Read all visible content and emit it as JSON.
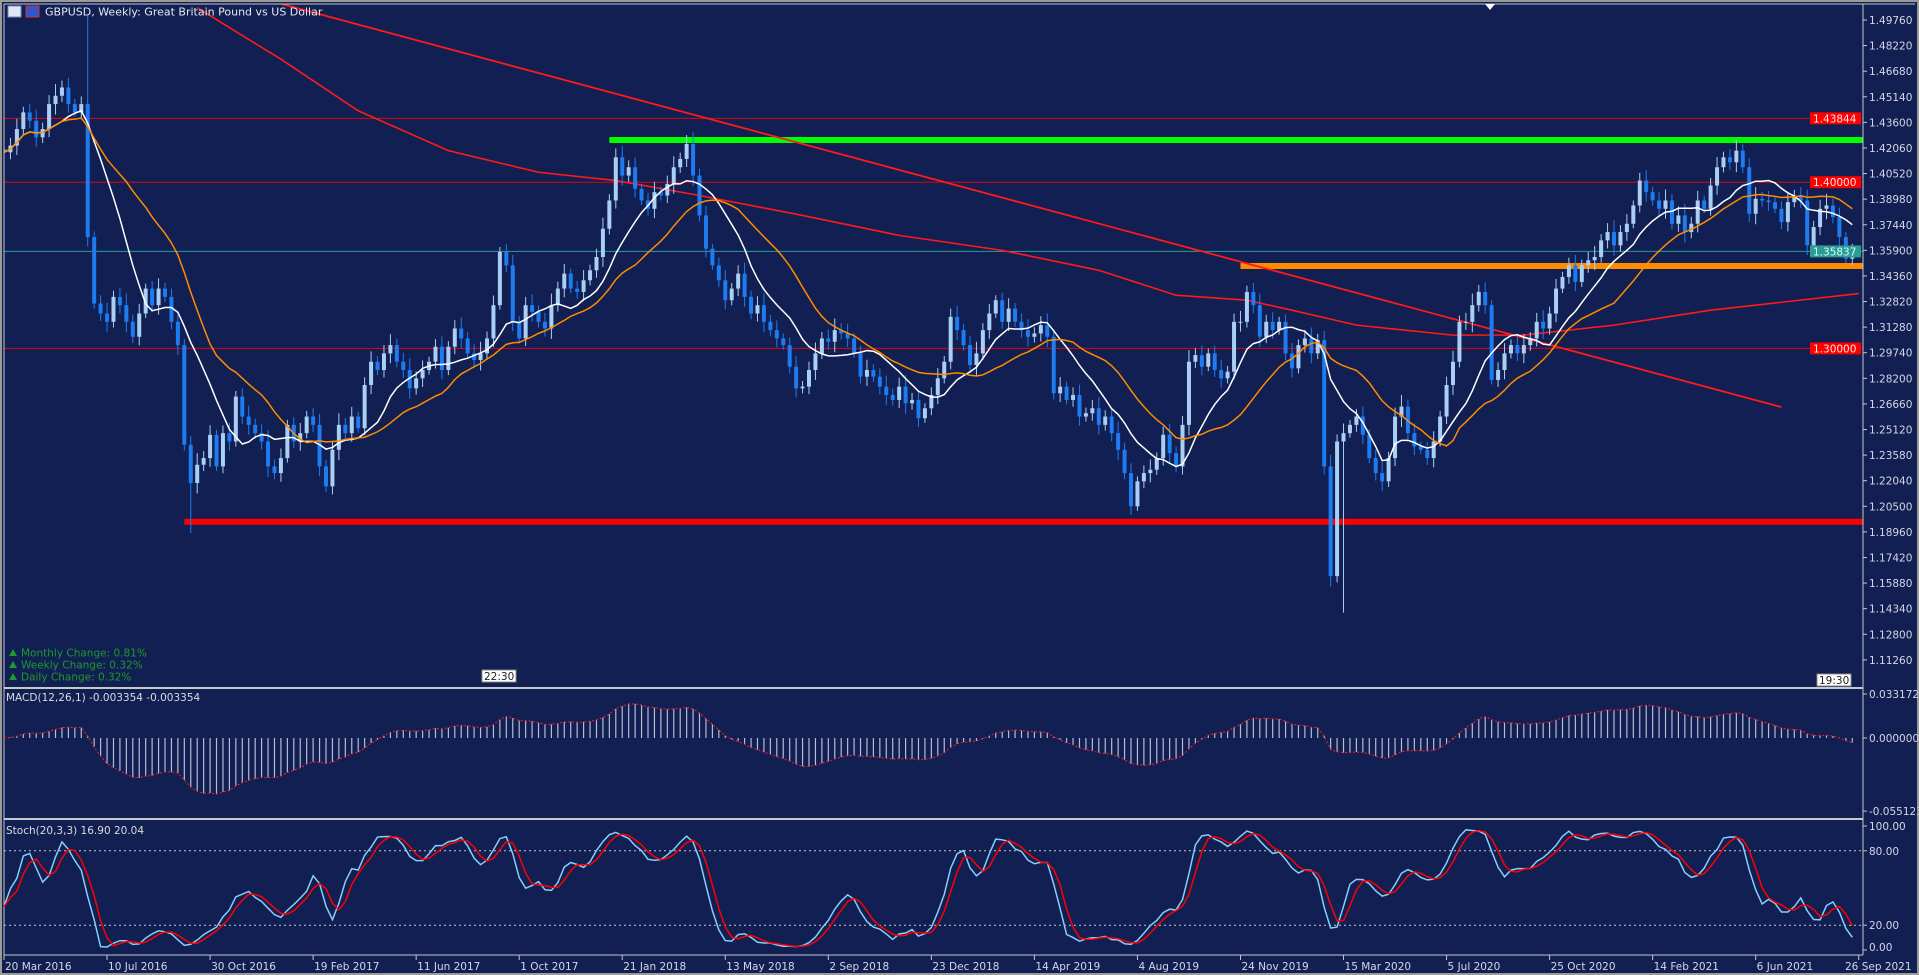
{
  "window": {
    "symbol_title": "GBPUSD, Weekly:  Great Britain Pound vs US Dollar",
    "icons": [
      "chart-window-icon",
      "flag-icon"
    ]
  },
  "info_panel": [
    {
      "icon": "triangle-up-icon",
      "text": "Monthly Change: 0.81%"
    },
    {
      "icon": "triangle-up-icon",
      "text": "Weekly Change: 0.32%"
    },
    {
      "icon": "triangle-up-icon",
      "text": "Daily Change: 0.32%"
    }
  ],
  "time_markers": [
    "22:30",
    "19:30"
  ],
  "colors": {
    "background": "#111f52",
    "bull_candle": "#a9cff5",
    "bear_candle": "#1f7bf0",
    "ma_fast": "#ffffff",
    "ma_slow": "#ff8c00",
    "ma_long": "#ff1a1a",
    "stoch_main": "#87cefa",
    "stoch_signal": "#ff0000",
    "macd_hist": "#b8bcd0",
    "macd_signal": "#ff2020",
    "info_text": "#1f9a2a"
  },
  "chart_data": {
    "type": "candlestick",
    "symbol": "GBPUSD",
    "timeframe": "Weekly",
    "first_bar_date": "20 Mar 2016",
    "weekly_close": [
      1.418,
      1.422,
      1.432,
      1.442,
      1.437,
      1.427,
      1.432,
      1.447,
      1.452,
      1.457,
      1.447,
      1.442,
      1.447,
      1.367,
      1.327,
      1.321,
      1.316,
      1.331,
      1.326,
      1.316,
      1.307,
      1.321,
      1.336,
      1.326,
      1.336,
      1.331,
      1.316,
      1.302,
      1.242,
      1.219,
      1.23,
      1.234,
      1.248,
      1.229,
      1.249,
      1.244,
      1.271,
      1.259,
      1.254,
      1.249,
      1.244,
      1.229,
      1.225,
      1.234,
      1.254,
      1.244,
      1.249,
      1.259,
      1.254,
      1.229,
      1.217,
      1.239,
      1.254,
      1.249,
      1.259,
      1.252,
      1.278,
      1.292,
      1.287,
      1.297,
      1.302,
      1.292,
      1.287,
      1.276,
      1.282,
      1.287,
      1.292,
      1.301,
      1.287,
      1.301,
      1.312,
      1.306,
      1.297,
      1.293,
      1.297,
      1.306,
      1.326,
      1.358,
      1.35,
      1.316,
      1.306,
      1.326,
      1.322,
      1.316,
      1.312,
      1.326,
      1.336,
      1.345,
      1.336,
      1.334,
      1.341,
      1.347,
      1.355,
      1.372,
      1.389,
      1.415,
      1.404,
      1.409,
      1.396,
      1.389,
      1.384,
      1.394,
      1.392,
      1.399,
      1.409,
      1.414,
      1.423,
      1.404,
      1.38,
      1.36,
      1.35,
      1.341,
      1.329,
      1.336,
      1.345,
      1.331,
      1.321,
      1.326,
      1.316,
      1.311,
      1.306,
      1.302,
      1.289,
      1.276,
      1.277,
      1.287,
      1.297,
      1.306,
      1.304,
      1.311,
      1.309,
      1.306,
      1.297,
      1.283,
      1.287,
      1.283,
      1.277,
      1.272,
      1.269,
      1.277,
      1.267,
      1.269,
      1.258,
      1.264,
      1.272,
      1.282,
      1.292,
      1.319,
      1.311,
      1.302,
      1.29,
      1.297,
      1.311,
      1.321,
      1.329,
      1.316,
      1.324,
      1.316,
      1.311,
      1.307,
      1.309,
      1.314,
      1.307,
      1.273,
      1.277,
      1.269,
      1.272,
      1.259,
      1.261,
      1.264,
      1.254,
      1.259,
      1.249,
      1.239,
      1.225,
      1.205,
      1.22,
      1.225,
      1.227,
      1.234,
      1.248,
      1.237,
      1.229,
      1.254,
      1.292,
      1.296,
      1.289,
      1.297,
      1.287,
      1.282,
      1.286,
      1.316,
      1.316,
      1.334,
      1.326,
      1.307,
      1.316,
      1.311,
      1.316,
      1.297,
      1.288,
      1.302,
      1.306,
      1.297,
      1.305,
      1.229,
      1.163,
      1.244,
      1.249,
      1.254,
      1.259,
      1.248,
      1.234,
      1.225,
      1.22,
      1.234,
      1.259,
      1.265,
      1.249,
      1.241,
      1.239,
      1.234,
      1.244,
      1.259,
      1.278,
      1.292,
      1.316,
      1.316,
      1.326,
      1.334,
      1.326,
      1.281,
      1.287,
      1.297,
      1.302,
      1.297,
      1.302,
      1.306,
      1.316,
      1.312,
      1.321,
      1.336,
      1.343,
      1.35,
      1.34,
      1.35,
      1.353,
      1.355,
      1.365,
      1.37,
      1.362,
      1.37,
      1.375,
      1.386,
      1.401,
      1.394,
      1.389,
      1.384,
      1.389,
      1.375,
      1.38,
      1.37,
      1.375,
      1.389,
      1.384,
      1.398,
      1.409,
      1.415,
      1.412,
      1.419,
      1.409,
      1.381,
      1.39,
      1.389,
      1.388,
      1.384,
      1.376,
      1.388,
      1.392,
      1.389,
      1.362,
      1.373,
      1.384,
      1.386,
      1.379,
      1.367,
      1.354,
      1.3584
    ],
    "wick_extremes": [
      {
        "date": "19 Jun 2016",
        "high": 1.501
      },
      {
        "date": "9 Oct 2016",
        "low": 1.189
      },
      {
        "date": "15 Mar 2020",
        "low": 1.141
      }
    ],
    "moving_averages": [
      {
        "color_key": "ma_fast",
        "period": 10
      },
      {
        "color_key": "ma_slow",
        "period": 20
      }
    ],
    "long_ma_path": [
      [
        "16 Oct 2016",
        1.505
      ],
      [
        "15 Jan 2017",
        1.474
      ],
      [
        "9 Apr 2017",
        1.443
      ],
      [
        "16 Jul 2017",
        1.419
      ],
      [
        "22 Oct 2017",
        1.406
      ],
      [
        "14 Jan 2018",
        1.401
      ],
      [
        "15 Apr 2018",
        1.392
      ],
      [
        "5 Aug 2018",
        1.38
      ],
      [
        "18 Nov 2018",
        1.368
      ],
      [
        "10 Mar 2019",
        1.359
      ],
      [
        "23 Jun 2019",
        1.347
      ],
      [
        "15 Sep 2019",
        1.332
      ],
      [
        "1 Dec 2019",
        1.329
      ],
      [
        "19 Jan 2020",
        1.323
      ],
      [
        "29 Mar 2020",
        1.314
      ],
      [
        "12 Jul 2020",
        1.308
      ],
      [
        "27 Sep 2020",
        1.308
      ],
      [
        "3 Jan 2021",
        1.314
      ],
      [
        "18 Apr 2021",
        1.323
      ],
      [
        "26 Sep 2021",
        1.333
      ]
    ],
    "trendline": {
      "start": [
        "8 Jan 2017",
        1.5084
      ],
      "end": [
        "4 Jul 2021",
        1.2647
      ],
      "color": "#ff1a1a"
    },
    "horizontal_levels": [
      {
        "price": 1.43844,
        "label": "1.43844",
        "color": "#ff0000",
        "style": "thin",
        "from": "all"
      },
      {
        "price": 1.4254,
        "color": "#00ff00",
        "style": "thick",
        "from": "7 Jan 2018"
      },
      {
        "price": 1.4,
        "label": "1.40000",
        "color": "#ff0000",
        "style": "thin",
        "from": "all"
      },
      {
        "price": 1.35837,
        "label": "1.35837",
        "color": "#2a9d96",
        "style": "bid",
        "from": "all"
      },
      {
        "price": 1.3496,
        "color": "#ff8c00",
        "style": "thick",
        "from": "24 Nov 2019"
      },
      {
        "price": 1.3,
        "label": "1.30000",
        "color": "#ff0000",
        "style": "thin",
        "from": "all"
      },
      {
        "price": 1.1957,
        "color": "#ff0000",
        "style": "thick",
        "from": "2 Oct 2016"
      }
    ],
    "price_axis": {
      "ticks": [
        "1.49760",
        "1.48220",
        "1.46680",
        "1.45140",
        "1.43600",
        "1.42060",
        "1.40520",
        "1.38980",
        "1.37440",
        "1.35900",
        "1.34360",
        "1.32820",
        "1.31280",
        "1.29740",
        "1.28200",
        "1.26660",
        "1.25120",
        "1.23580",
        "1.22040",
        "1.20500",
        "1.18960",
        "1.17420",
        "1.15880",
        "1.14340",
        "1.12800",
        "1.11260"
      ]
    },
    "date_axis": {
      "labels": [
        "20 Mar 2016",
        "10 Jul 2016",
        "30 Oct 2016",
        "19 Feb 2017",
        "11 Jun 2017",
        "1 Oct 2017",
        "21 Jan 2018",
        "13 May 2018",
        "2 Sep 2018",
        "23 Dec 2018",
        "14 Apr 2019",
        "4 Aug 2019",
        "24 Nov 2019",
        "15 Mar 2020",
        "5 Jul 2020",
        "25 Oct 2020",
        "14 Feb 2021",
        "6 Jun 2021",
        "26 Sep 2021"
      ]
    },
    "macd": {
      "label": "MACD(12,26,1) -0.003354 -0.003354",
      "fast": 12,
      "slow": 26,
      "signal": 1,
      "axis_ticks": [
        "0.033172",
        "0.000000",
        "-0.055123"
      ],
      "range": [
        -0.055123,
        0.033172
      ]
    },
    "stochastic": {
      "label": "Stoch(20,3,3) 16.90 20.04",
      "k": 20,
      "d": 3,
      "slowing": 3,
      "levels": [
        80,
        20
      ],
      "axis_ticks": [
        "100.00",
        "80.00",
        "20.00",
        "0.00"
      ],
      "range": [
        0,
        100
      ]
    }
  }
}
